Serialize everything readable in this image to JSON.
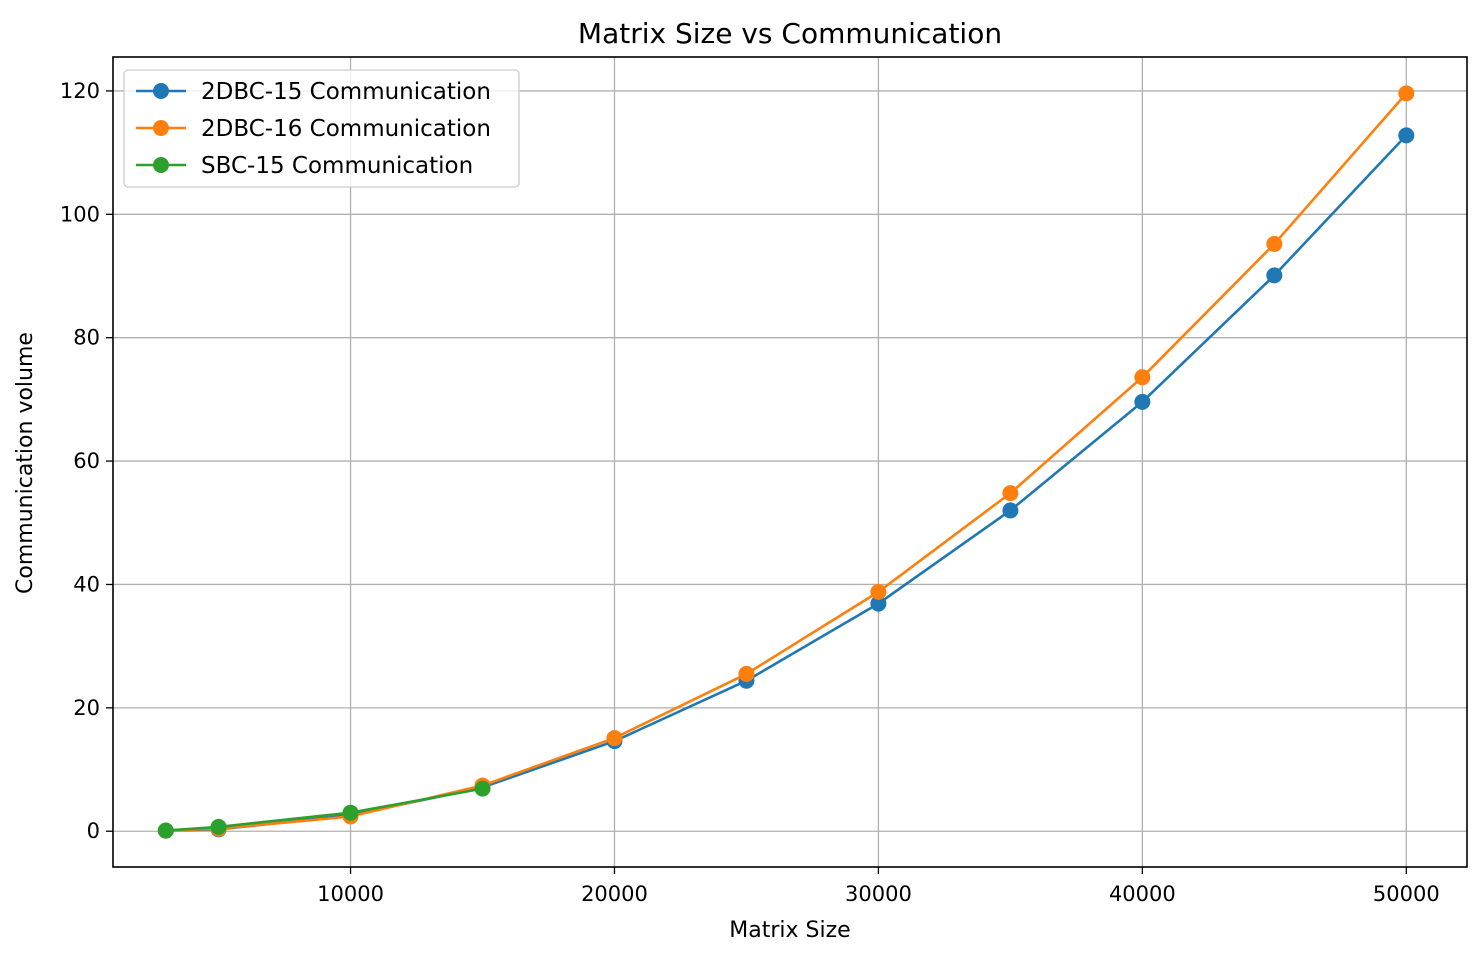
{
  "chart_data": {
    "type": "line",
    "title": "Matrix Size vs Communication",
    "xlabel": "Matrix Size",
    "ylabel": "Communication volume",
    "xlim": [
      1000,
      52300
    ],
    "ylim": [
      -5.8,
      125.5
    ],
    "x_ticks": [
      10000,
      20000,
      30000,
      40000,
      50000
    ],
    "y_ticks": [
      0,
      20,
      40,
      60,
      80,
      100,
      120
    ],
    "grid": true,
    "legend_position": "top-left",
    "series": [
      {
        "name": "2DBC-15 Communication",
        "color": "#1f77b4",
        "x": [
          3000,
          5000,
          10000,
          15000,
          20000,
          25000,
          30000,
          35000,
          40000,
          45000,
          50000
        ],
        "y": [
          0.1,
          0.3,
          2.6,
          7.1,
          14.6,
          24.4,
          36.9,
          52.0,
          69.6,
          90.1,
          112.8
        ]
      },
      {
        "name": "2DBC-16 Communication",
        "color": "#ff7f0e",
        "x": [
          3000,
          5000,
          10000,
          15000,
          20000,
          25000,
          30000,
          35000,
          40000,
          45000,
          50000
        ],
        "y": [
          0.1,
          0.4,
          2.4,
          7.4,
          15.1,
          25.5,
          38.8,
          54.8,
          73.6,
          95.2,
          119.6
        ]
      },
      {
        "name": "SBC-15 Communication",
        "color": "#2ca02c",
        "x": [
          3000,
          5000,
          10000,
          15000
        ],
        "y": [
          0.1,
          0.7,
          3.0,
          6.9
        ]
      }
    ]
  }
}
